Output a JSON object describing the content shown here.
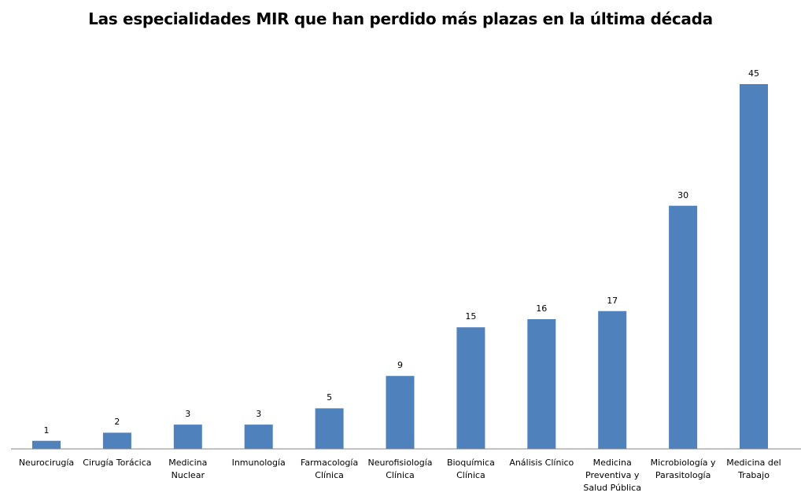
{
  "chart_data": {
    "type": "bar",
    "title": "Las especialidades MIR que han perdido más plazas en la última década",
    "xlabel": "",
    "ylabel": "",
    "ylim": [
      0,
      45
    ],
    "grid": false,
    "legend": "none",
    "bar_color": "#4F81BD",
    "categories": [
      "Neurocirugía",
      "Cirugía Torácica",
      "Medicina Nuclear",
      "Inmunología",
      "Farmacología Clínica",
      "Neurofisiología Clínica",
      "Bioquímica Clínica",
      "Análisis Clínico",
      "Medicina Preventiva y Salud Pública",
      "Microbiología y Parasitología",
      "Medicina del Trabajo"
    ],
    "category_lines": [
      [
        "Neurocirugía"
      ],
      [
        "Cirugía Torácica"
      ],
      [
        "Medicina",
        "Nuclear"
      ],
      [
        "Inmunología"
      ],
      [
        "Farmacología",
        "Clínica"
      ],
      [
        "Neurofisiología",
        "Clínica"
      ],
      [
        "Bioquímica",
        "Clínica"
      ],
      [
        "Análisis Clínico"
      ],
      [
        "Medicina",
        "Preventiva y",
        "Salud Pública"
      ],
      [
        "Microbiología y",
        "Parasitología"
      ],
      [
        "Medicina del",
        "Trabajo"
      ]
    ],
    "values": [
      1,
      2,
      3,
      3,
      5,
      9,
      15,
      16,
      17,
      30,
      45
    ]
  }
}
